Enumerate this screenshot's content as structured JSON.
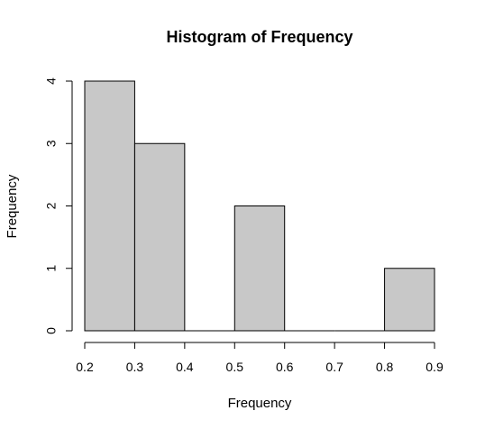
{
  "chart_data": {
    "type": "bar",
    "title": "Histogram of Frequency",
    "xlabel": "Frequency",
    "ylabel": "Frequency",
    "bins": [
      {
        "start": 0.2,
        "end": 0.3,
        "count": 4
      },
      {
        "start": 0.3,
        "end": 0.4,
        "count": 3
      },
      {
        "start": 0.4,
        "end": 0.5,
        "count": 0
      },
      {
        "start": 0.5,
        "end": 0.6,
        "count": 2
      },
      {
        "start": 0.6,
        "end": 0.7,
        "count": 0
      },
      {
        "start": 0.7,
        "end": 0.8,
        "count": 0
      },
      {
        "start": 0.8,
        "end": 0.9,
        "count": 1
      }
    ],
    "x_ticks": [
      "0.2",
      "0.3",
      "0.4",
      "0.5",
      "0.6",
      "0.7",
      "0.8",
      "0.9"
    ],
    "y_ticks": [
      "0",
      "1",
      "2",
      "3",
      "4"
    ],
    "xlim": [
      0.2,
      0.9
    ],
    "ylim": [
      0,
      4
    ],
    "bar_color": "#c8c8c8",
    "grid": false
  }
}
